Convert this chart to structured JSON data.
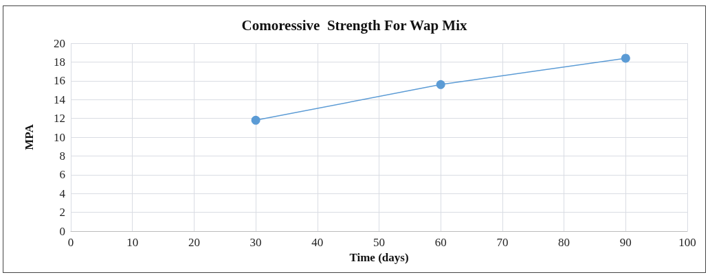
{
  "chart_data": {
    "type": "line",
    "title": "Comoressive  Strength For Wap Mix",
    "xlabel": "Time (days)",
    "ylabel": "MPA",
    "x": [
      30,
      60,
      90
    ],
    "series": [
      {
        "color": "#5b9bd5",
        "values": [
          11.8,
          15.6,
          18.4
        ]
      }
    ],
    "xlim": [
      0,
      100
    ],
    "xticks": [
      0,
      10,
      20,
      30,
      40,
      50,
      60,
      70,
      80,
      90,
      100
    ],
    "ylim": [
      0,
      20
    ],
    "yticks": [
      0,
      2,
      4,
      6,
      8,
      10,
      12,
      14,
      16,
      18,
      20
    ],
    "grid": true,
    "marker": "circle",
    "line_style": "solid"
  }
}
